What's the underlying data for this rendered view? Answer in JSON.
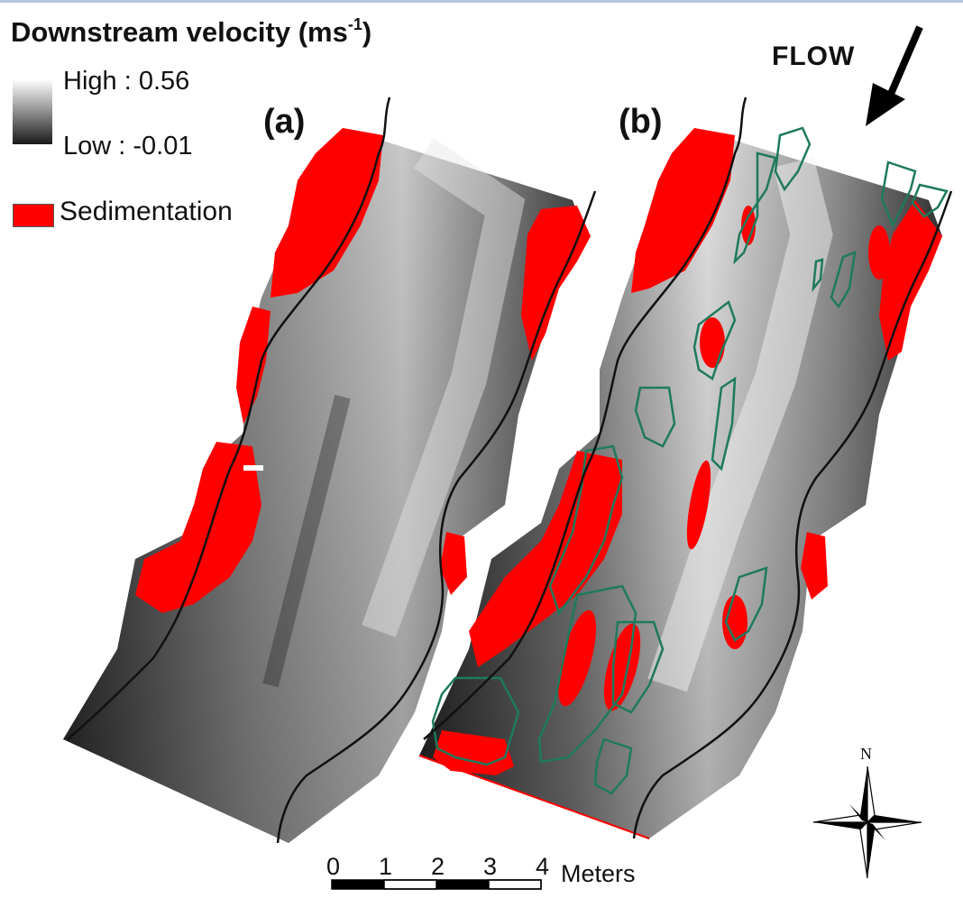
{
  "legend": {
    "title_text": "Downstream velocity (ms",
    "title_sup": "-1",
    "title_close": ")",
    "high_label": "High : 0.56",
    "low_label": "Low : -0.01",
    "sedimentation_label": "Sedimentation",
    "sedimentation_color": "#ff0000"
  },
  "panels": {
    "a_label": "(a)",
    "b_label": "(b)"
  },
  "flow": {
    "label": "FLOW"
  },
  "north": {
    "label": "N"
  },
  "scale_bar": {
    "ticks": [
      "0",
      "1",
      "2",
      "3",
      "4"
    ],
    "unit": "Meters"
  },
  "colors": {
    "sediment": "#ff0000",
    "outline_green": "#1f7a5c",
    "ramp_high": "#ffffff",
    "ramp_low": "#1a1a1a"
  }
}
